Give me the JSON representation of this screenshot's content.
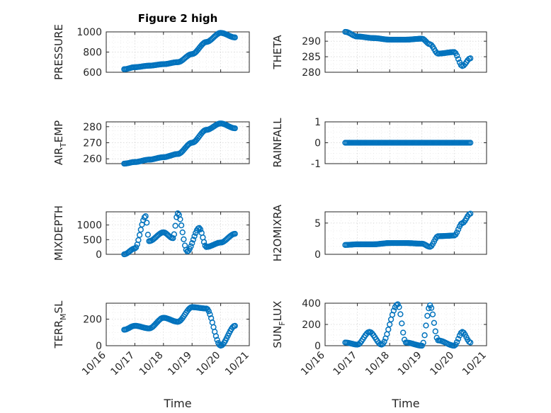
{
  "figure": {
    "title": "Figure 2 high",
    "marker_color": "#0072BD",
    "x_tick_labels": [
      "10/16",
      "10/17",
      "10/18",
      "10/19",
      "10/20",
      "10/21"
    ],
    "x_axis_label": "Time"
  },
  "chart_data": [
    {
      "type": "scatter",
      "marker": "circle",
      "ylabel": "PRESSURE",
      "title": "Figure 2 high",
      "xlim": [
        "10/16",
        "10/21"
      ],
      "ylim": [
        600,
        1000
      ],
      "yticks": [
        600,
        800,
        1000
      ],
      "x": [
        "10/16 15:00",
        "10/17 00:00",
        "10/17 12:00",
        "10/18 00:00",
        "10/18 12:00",
        "10/19 00:00",
        "10/19 12:00",
        "10/20 00:00",
        "10/20 12:00"
      ],
      "y": [
        630,
        650,
        665,
        680,
        700,
        780,
        900,
        990,
        945
      ],
      "grid": true
    },
    {
      "type": "scatter",
      "marker": "circle",
      "ylabel": "THETA",
      "xlim": [
        "10/16",
        "10/21"
      ],
      "ylim": [
        280,
        293
      ],
      "yticks": [
        280,
        285,
        290
      ],
      "x": [
        "10/16 15:00",
        "10/17 00:00",
        "10/17 12:00",
        "10/18 00:00",
        "10/18 12:00",
        "10/19 00:00",
        "10/19 06:00",
        "10/19 12:00",
        "10/20 00:00",
        "10/20 06:00",
        "10/20 12:00"
      ],
      "y": [
        293,
        291.5,
        291,
        290.5,
        290.5,
        290.8,
        289,
        286,
        286.5,
        282,
        284.5
      ],
      "grid": true
    },
    {
      "type": "scatter",
      "marker": "circle",
      "ylabel": "AIR_TEMP",
      "xlim": [
        "10/16",
        "10/21"
      ],
      "ylim": [
        257,
        283
      ],
      "yticks": [
        260,
        270,
        280
      ],
      "x": [
        "10/16 15:00",
        "10/17 00:00",
        "10/17 12:00",
        "10/18 00:00",
        "10/18 12:00",
        "10/19 00:00",
        "10/19 12:00",
        "10/20 00:00",
        "10/20 12:00"
      ],
      "y": [
        257,
        258,
        259.5,
        261,
        263,
        270,
        278,
        282,
        279
      ],
      "grid": true
    },
    {
      "type": "scatter",
      "marker": "circle",
      "ylabel": "RAINFALL",
      "xlim": [
        "10/16",
        "10/21"
      ],
      "ylim": [
        -1,
        1
      ],
      "yticks": [
        -1,
        0,
        1
      ],
      "x": [
        "10/16 15:00",
        "10/17 00:00",
        "10/17 12:00",
        "10/18 00:00",
        "10/18 12:00",
        "10/19 00:00",
        "10/19 12:00",
        "10/20 00:00",
        "10/20 12:00"
      ],
      "y": [
        0,
        0,
        0,
        0,
        0,
        0,
        0,
        0,
        0
      ],
      "grid": true
    },
    {
      "type": "scatter",
      "marker": "circle",
      "ylabel": "MIXDEPTH",
      "xlim": [
        "10/16",
        "10/21"
      ],
      "ylim": [
        0,
        1450
      ],
      "yticks": [
        0,
        500,
        1000
      ],
      "x": [
        "10/16 15:00",
        "10/17 00:00",
        "10/17 09:00",
        "10/17 12:00",
        "10/18 00:00",
        "10/18 08:00",
        "10/18 12:00",
        "10/18 20:00",
        "10/19 06:00",
        "10/19 12:00",
        "10/20 00:00",
        "10/20 12:00"
      ],
      "y": [
        0,
        200,
        1300,
        450,
        750,
        550,
        1400,
        100,
        900,
        250,
        400,
        700
      ],
      "grid": true
    },
    {
      "type": "scatter",
      "marker": "circle",
      "ylabel": "H2OMIXRA",
      "xlim": [
        "10/16",
        "10/21"
      ],
      "ylim": [
        0,
        6.8
      ],
      "yticks": [
        0,
        5
      ],
      "x": [
        "10/16 15:00",
        "10/17 00:00",
        "10/17 12:00",
        "10/18 00:00",
        "10/18 12:00",
        "10/19 00:00",
        "10/19 06:00",
        "10/19 12:00",
        "10/20 00:00",
        "10/20 06:00",
        "10/20 12:00"
      ],
      "y": [
        1.5,
        1.6,
        1.6,
        1.8,
        1.8,
        1.7,
        1.2,
        2.9,
        3.0,
        5.0,
        6.5
      ],
      "grid": true
    },
    {
      "type": "scatter",
      "marker": "circle",
      "ylabel": "TERR_MSL",
      "xlim": [
        "10/16",
        "10/21"
      ],
      "ylim": [
        0,
        320
      ],
      "yticks": [
        0,
        200
      ],
      "x": [
        "10/16 15:00",
        "10/17 00:00",
        "10/17 12:00",
        "10/18 00:00",
        "10/18 12:00",
        "10/19 00:00",
        "10/19 12:00",
        "10/20 00:00",
        "10/20 12:00"
      ],
      "y": [
        120,
        150,
        130,
        210,
        180,
        290,
        280,
        0,
        150
      ],
      "grid": true
    },
    {
      "type": "scatter",
      "marker": "circle",
      "ylabel": "SUN_FLUX",
      "xlim": [
        "10/16",
        "10/21"
      ],
      "ylim": [
        0,
        400
      ],
      "yticks": [
        0,
        200,
        400
      ],
      "x": [
        "10/16 15:00",
        "10/17 00:00",
        "10/17 09:00",
        "10/17 18:00",
        "10/18 06:00",
        "10/18 12:00",
        "10/19 00:00",
        "10/19 06:00",
        "10/19 12:00",
        "10/20 00:00",
        "10/20 06:00",
        "10/20 12:00"
      ],
      "y": [
        30,
        10,
        130,
        10,
        390,
        30,
        0,
        380,
        50,
        0,
        130,
        30
      ],
      "grid": true
    }
  ]
}
